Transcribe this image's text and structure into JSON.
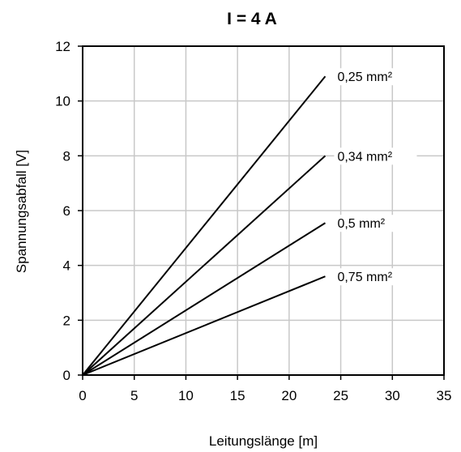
{
  "chart_data": {
    "type": "line",
    "title": "I = 4 A",
    "xlabel": "Leitungslänge [m]",
    "ylabel": "Spannungsabfall [V]",
    "xlim": [
      0,
      35
    ],
    "ylim": [
      0,
      12
    ],
    "xticks": [
      0,
      5,
      10,
      15,
      20,
      25,
      30,
      35
    ],
    "yticks": [
      0,
      2,
      4,
      6,
      8,
      10,
      12
    ],
    "grid": true,
    "series": [
      {
        "name": "0,25 mm²",
        "x": [
          0,
          23.5
        ],
        "y": [
          0,
          10.9
        ]
      },
      {
        "name": "0,34 mm²",
        "x": [
          0,
          23.5
        ],
        "y": [
          0,
          8.0
        ]
      },
      {
        "name": "0,5 mm²",
        "x": [
          0,
          23.5
        ],
        "y": [
          0,
          5.55
        ]
      },
      {
        "name": "0,75 mm²",
        "x": [
          0,
          23.5
        ],
        "y": [
          0,
          3.6
        ]
      }
    ],
    "colors": {
      "line": "#000000",
      "grid": "#c8c8c8",
      "frame": "#000000"
    }
  }
}
